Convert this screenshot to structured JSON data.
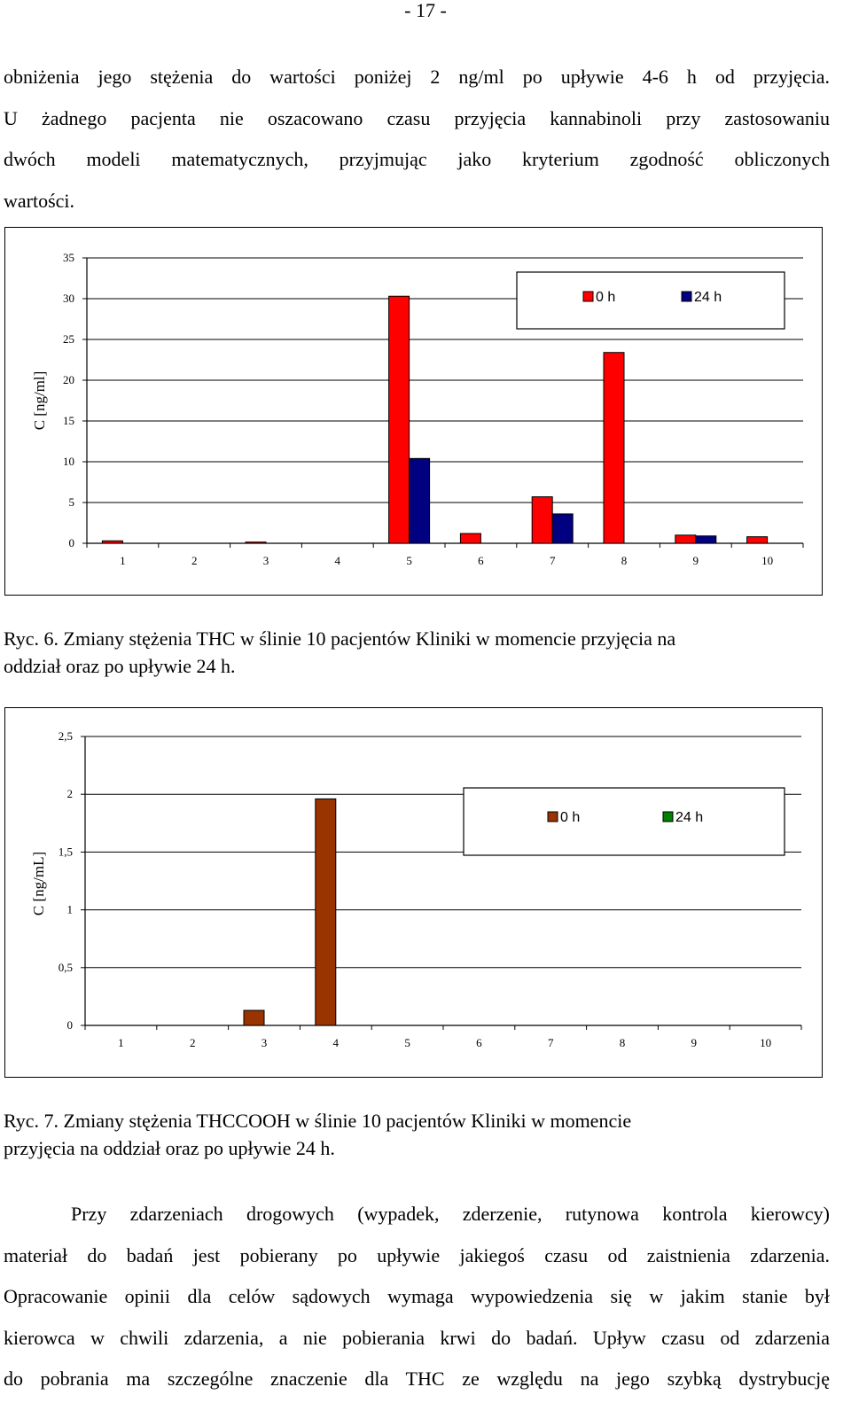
{
  "page_number": "- 17 -",
  "paragraph_top": [
    "obniżenia jego stężenia do wartości poniżej 2 ng/ml po upływie 4-6 h od przyjęcia.",
    "U żadnego pacjenta nie oszacowano czasu przyjęcia kannabinoli przy zastosowaniu",
    "dwóch modeli matematycznych, przyjmując jako kryterium zgodność obliczonych",
    "wartości."
  ],
  "caption_fig6": [
    "Ryc. 6. Zmiany stężenia THC w ślinie 10 pacjentów Kliniki w momencie przyjęcia na",
    "oddział oraz po upływie 24 h."
  ],
  "caption_fig7": [
    "Ryc. 7. Zmiany stężenia THCCOOH w ślinie 10 pacjentów Kliniki w momencie",
    "przyjęcia na oddział oraz po upływie 24 h."
  ],
  "paragraph_bottom": [
    "Przy zdarzeniach drogowych (wypadek, zderzenie, rutynowa kontrola kierowcy)",
    "materiał do badań jest pobierany po upływie jakiegoś czasu od zaistnienia zdarzenia.",
    "Opracowanie opinii dla celów sądowych wymaga wypowiedzenia się w jakim stanie był",
    "kierowca w chwili zdarzenia, a nie pobierania krwi do badań. Upływ czasu od zdarzenia",
    "do pobrania ma szczególne znaczenie dla THC ze względu na jego szybką dystrybucję"
  ],
  "chart_data": [
    {
      "type": "bar",
      "ylabel": "C [ng/ml]",
      "categories": [
        "1",
        "2",
        "3",
        "4",
        "5",
        "6",
        "7",
        "8",
        "9",
        "10"
      ],
      "ylim": [
        0,
        35
      ],
      "yticks": [
        "0",
        "5",
        "10",
        "15",
        "20",
        "25",
        "30",
        "35"
      ],
      "ytick_values": [
        0,
        5,
        10,
        15,
        20,
        25,
        30,
        35
      ],
      "grid": true,
      "legend_position": "top-right",
      "series": [
        {
          "name": "0 h",
          "color": "#ff0000",
          "values": [
            0.3,
            0,
            0.15,
            0,
            30.3,
            1.2,
            5.7,
            23.4,
            1.0,
            0.8
          ]
        },
        {
          "name": "24 h",
          "color": "#000080",
          "values": [
            0,
            0,
            0,
            0,
            10.4,
            0,
            3.6,
            0,
            0.9,
            0
          ]
        }
      ]
    },
    {
      "type": "bar",
      "ylabel": "C [ng/mL]",
      "categories": [
        "1",
        "2",
        "3",
        "4",
        "5",
        "6",
        "7",
        "8",
        "9",
        "10"
      ],
      "ylim": [
        0,
        2.5
      ],
      "yticks": [
        "0",
        "0,5",
        "1",
        "1,5",
        "2",
        "2,5"
      ],
      "ytick_values": [
        0,
        0.5,
        1,
        1.5,
        2,
        2.5
      ],
      "grid": true,
      "legend_position": "top-right",
      "series": [
        {
          "name": "0 h",
          "color": "#993300",
          "values": [
            0,
            0,
            0.13,
            1.96,
            0,
            0,
            0,
            0,
            0,
            0
          ]
        },
        {
          "name": "24 h",
          "color": "#008000",
          "values": [
            0,
            0,
            0,
            0,
            0,
            0,
            0,
            0,
            0,
            0
          ]
        }
      ]
    }
  ]
}
